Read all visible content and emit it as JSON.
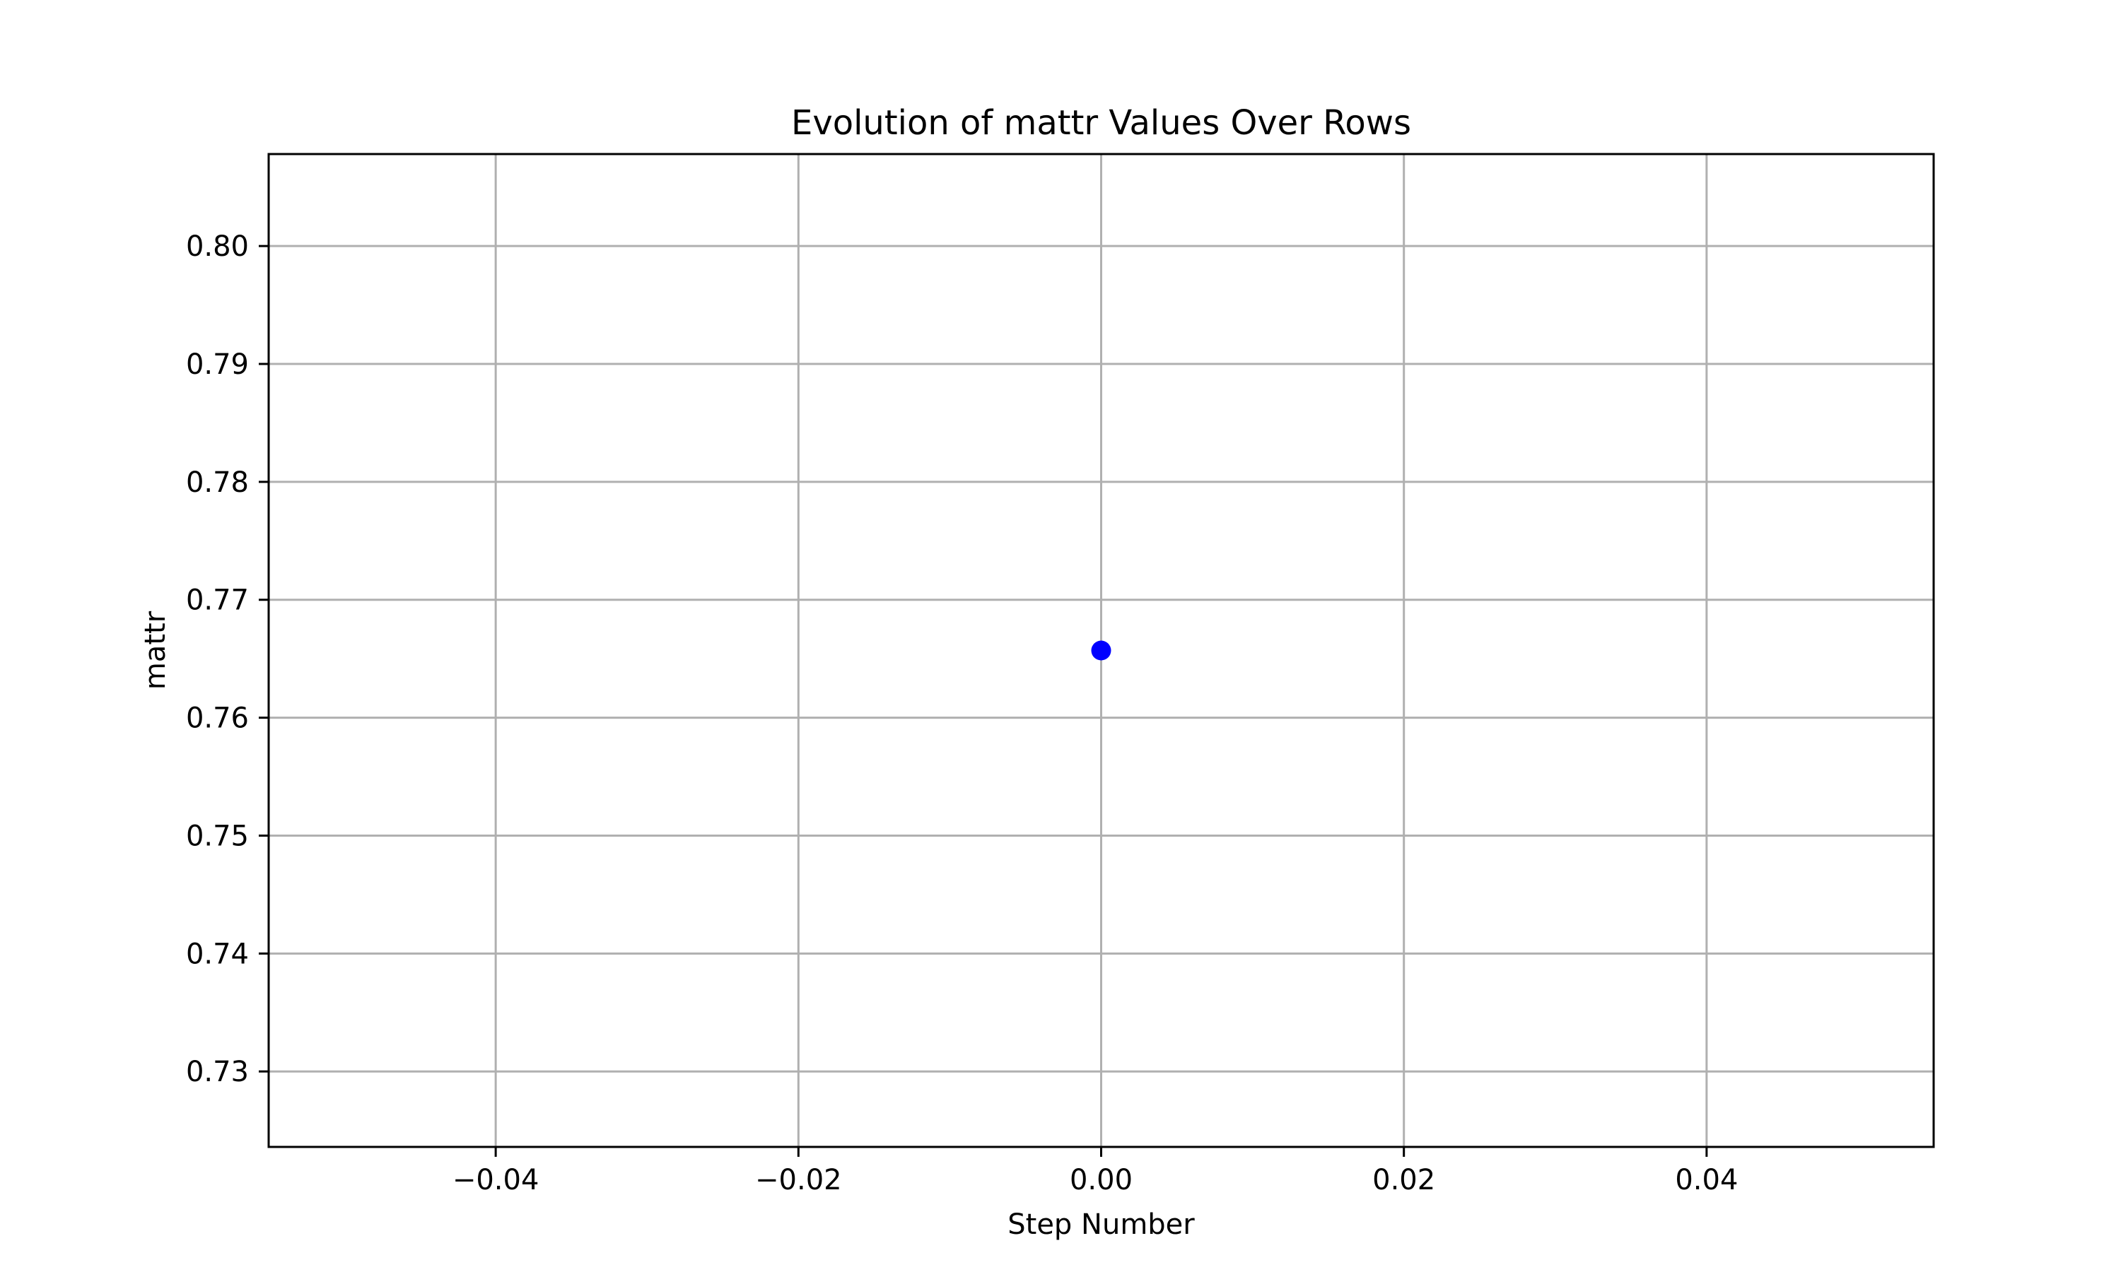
{
  "chart_data": {
    "type": "scatter",
    "title": "Evolution of mattr Values Over Rows",
    "xlabel": "Step Number",
    "ylabel": "mattr",
    "xlim": [
      -0.055,
      0.055
    ],
    "ylim": [
      0.7236,
      0.8078
    ],
    "xticks": [
      -0.04,
      -0.02,
      0.0,
      0.02,
      0.04
    ],
    "xtick_labels": [
      "−0.04",
      "−0.02",
      "0.00",
      "0.02",
      "0.04"
    ],
    "yticks": [
      0.73,
      0.74,
      0.75,
      0.76,
      0.77,
      0.78,
      0.79,
      0.8
    ],
    "ytick_labels": [
      "0.73",
      "0.74",
      "0.75",
      "0.76",
      "0.77",
      "0.78",
      "0.79",
      "0.80"
    ],
    "grid": true,
    "marker_color": "#0000ff",
    "series": [
      {
        "x": [
          0.0
        ],
        "y": [
          0.7657
        ]
      }
    ]
  }
}
